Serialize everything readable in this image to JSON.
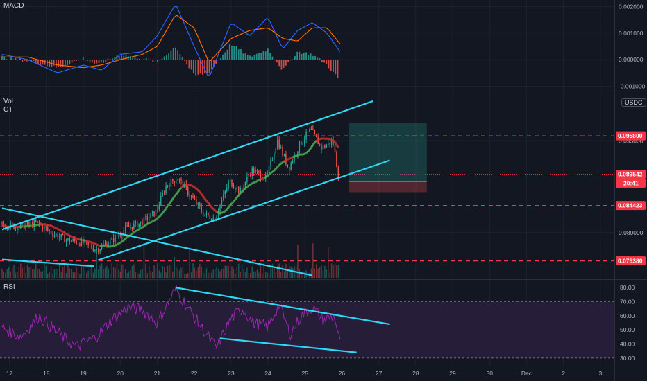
{
  "panes": {
    "macd": {
      "label": "MACD"
    },
    "price": {
      "vol_label": "Vol",
      "ct_label": "CT",
      "currency_badge": "USDC"
    },
    "rsi": {
      "label": "RSI"
    }
  },
  "macd_axis": [
    "0.002000",
    "0.001000",
    "0.000000",
    "-0.001000"
  ],
  "price_axis": [
    "0.095000",
    "0.080000"
  ],
  "rsi_axis": [
    "80.00",
    "70.00",
    "60.00",
    "50.00",
    "40.00",
    "30.00"
  ],
  "price_tags": [
    {
      "text": "0.095800",
      "color": "#f23645"
    },
    {
      "text": "0.089542",
      "color": "#f23645"
    },
    {
      "text": "20:41",
      "color": "#f23645"
    },
    {
      "text": "0.084423",
      "color": "#f23645"
    },
    {
      "text": "0.075380",
      "color": "#f23645"
    }
  ],
  "time_axis": [
    "17",
    "18",
    "19",
    "20",
    "21",
    "22",
    "23",
    "24",
    "25",
    "26",
    "27",
    "28",
    "29",
    "30",
    "Dec",
    "2",
    "3"
  ],
  "colors": {
    "background": "#131722",
    "up": "#26a69a",
    "down": "#ef5350",
    "trendline": "#2ed8f2",
    "level": "#f23645",
    "rsi_line": "#9c27b0",
    "rsi_band": "#2a1f3d",
    "macd_line": "#2962ff",
    "signal_line": "#ff6d00"
  },
  "chart_data": {
    "type": "candlestick",
    "x_axis_dates": [
      "17",
      "18",
      "19",
      "20",
      "21",
      "22",
      "23",
      "24",
      "25",
      "26",
      "27",
      "28",
      "29",
      "30",
      "Dec",
      "2",
      "3"
    ],
    "price_range": [
      0.0725,
      0.1025
    ],
    "horizontal_levels": [
      0.0958,
      0.084423,
      0.07538
    ],
    "last_price": 0.089542,
    "long_position": {
      "entry": 0.0883,
      "target": 0.0979,
      "stop": 0.0866
    },
    "price_path": [
      {
        "x": 16.8,
        "y": 0.0815
      },
      {
        "x": 17.3,
        "y": 0.0809
      },
      {
        "x": 17.8,
        "y": 0.0816
      },
      {
        "x": 18.2,
        "y": 0.0799
      },
      {
        "x": 18.6,
        "y": 0.0788
      },
      {
        "x": 19.0,
        "y": 0.0784
      },
      {
        "x": 19.4,
        "y": 0.0772
      },
      {
        "x": 19.8,
        "y": 0.0786
      },
      {
        "x": 20.2,
        "y": 0.0807
      },
      {
        "x": 20.6,
        "y": 0.0816
      },
      {
        "x": 21.0,
        "y": 0.0833
      },
      {
        "x": 21.3,
        "y": 0.0878
      },
      {
        "x": 21.6,
        "y": 0.0889
      },
      {
        "x": 22.0,
        "y": 0.0856
      },
      {
        "x": 22.3,
        "y": 0.0831
      },
      {
        "x": 22.6,
        "y": 0.0822
      },
      {
        "x": 23.0,
        "y": 0.0884
      },
      {
        "x": 23.3,
        "y": 0.0867
      },
      {
        "x": 23.6,
        "y": 0.0902
      },
      {
        "x": 24.0,
        "y": 0.0888
      },
      {
        "x": 24.3,
        "y": 0.0951
      },
      {
        "x": 24.6,
        "y": 0.0905
      },
      {
        "x": 24.9,
        "y": 0.0944
      },
      {
        "x": 25.2,
        "y": 0.0968
      },
      {
        "x": 25.5,
        "y": 0.0938
      },
      {
        "x": 25.8,
        "y": 0.095
      },
      {
        "x": 25.95,
        "y": 0.0895
      }
    ],
    "rsi_range": [
      25,
      85
    ],
    "rsi_levels": [
      70,
      30
    ],
    "rsi_path": [
      {
        "x": 16.8,
        "y": 52
      },
      {
        "x": 17.3,
        "y": 45
      },
      {
        "x": 17.8,
        "y": 60
      },
      {
        "x": 18.3,
        "y": 48
      },
      {
        "x": 18.8,
        "y": 38
      },
      {
        "x": 19.3,
        "y": 44
      },
      {
        "x": 19.8,
        "y": 58
      },
      {
        "x": 20.2,
        "y": 66
      },
      {
        "x": 20.6,
        "y": 64
      },
      {
        "x": 21.0,
        "y": 55
      },
      {
        "x": 21.5,
        "y": 79
      },
      {
        "x": 21.9,
        "y": 63
      },
      {
        "x": 22.3,
        "y": 48
      },
      {
        "x": 22.6,
        "y": 37
      },
      {
        "x": 23.0,
        "y": 58
      },
      {
        "x": 23.3,
        "y": 65
      },
      {
        "x": 23.6,
        "y": 55
      },
      {
        "x": 24.0,
        "y": 52
      },
      {
        "x": 24.3,
        "y": 68
      },
      {
        "x": 24.6,
        "y": 47
      },
      {
        "x": 24.9,
        "y": 60
      },
      {
        "x": 25.2,
        "y": 66
      },
      {
        "x": 25.5,
        "y": 57
      },
      {
        "x": 25.8,
        "y": 60
      },
      {
        "x": 25.95,
        "y": 40
      }
    ],
    "macd_range": [
      -0.00125,
      0.00225
    ],
    "macd_histogram": [
      {
        "x": 16.8,
        "y": 0.0001
      },
      {
        "x": 17.5,
        "y": -5e-05
      },
      {
        "x": 18.3,
        "y": -0.0003
      },
      {
        "x": 19.0,
        "y": 5e-05
      },
      {
        "x": 19.4,
        "y": -0.0002
      },
      {
        "x": 20.0,
        "y": 0.0002
      },
      {
        "x": 20.6,
        "y": 5e-05
      },
      {
        "x": 21.0,
        "y": -0.0001
      },
      {
        "x": 21.5,
        "y": 0.0005
      },
      {
        "x": 22.0,
        "y": -0.0006
      },
      {
        "x": 22.4,
        "y": -0.0005
      },
      {
        "x": 23.0,
        "y": 0.0006
      },
      {
        "x": 23.5,
        "y": 0.0001
      },
      {
        "x": 24.0,
        "y": 0.0004
      },
      {
        "x": 24.4,
        "y": -0.0004
      },
      {
        "x": 24.8,
        "y": 0.0003
      },
      {
        "x": 25.2,
        "y": 0.0002
      },
      {
        "x": 25.6,
        "y": -0.0002
      },
      {
        "x": 25.95,
        "y": -0.0008
      }
    ],
    "macd_line_path": [
      {
        "x": 16.8,
        "y": 0.0002
      },
      {
        "x": 17.5,
        "y": 0.0
      },
      {
        "x": 18.3,
        "y": -0.0005
      },
      {
        "x": 19.0,
        "y": -0.0002
      },
      {
        "x": 19.5,
        "y": -0.0004
      },
      {
        "x": 20.0,
        "y": 0.0002
      },
      {
        "x": 20.6,
        "y": 0.0003
      },
      {
        "x": 21.0,
        "y": 0.0009
      },
      {
        "x": 21.5,
        "y": 0.0021
      },
      {
        "x": 22.0,
        "y": 0.0005
      },
      {
        "x": 22.4,
        "y": -0.0007
      },
      {
        "x": 23.0,
        "y": 0.0014
      },
      {
        "x": 23.5,
        "y": 0.0009
      },
      {
        "x": 24.0,
        "y": 0.0016
      },
      {
        "x": 24.4,
        "y": 0.0004
      },
      {
        "x": 24.8,
        "y": 0.0011
      },
      {
        "x": 25.2,
        "y": 0.0014
      },
      {
        "x": 25.6,
        "y": 0.001
      },
      {
        "x": 25.95,
        "y": 0.0003
      }
    ],
    "signal_line_path": [
      {
        "x": 16.8,
        "y": 0.0001
      },
      {
        "x": 17.5,
        "y": 0.0001
      },
      {
        "x": 18.3,
        "y": -0.0002
      },
      {
        "x": 19.0,
        "y": -0.0003
      },
      {
        "x": 19.5,
        "y": -0.0002
      },
      {
        "x": 20.0,
        "y": 0.0
      },
      {
        "x": 20.6,
        "y": 0.0002
      },
      {
        "x": 21.0,
        "y": 0.0005
      },
      {
        "x": 21.5,
        "y": 0.0017
      },
      {
        "x": 22.0,
        "y": 0.0012
      },
      {
        "x": 22.4,
        "y": -0.0001
      },
      {
        "x": 23.0,
        "y": 0.0008
      },
      {
        "x": 23.5,
        "y": 0.0011
      },
      {
        "x": 24.0,
        "y": 0.0012
      },
      {
        "x": 24.4,
        "y": 0.0008
      },
      {
        "x": 24.8,
        "y": 0.0007
      },
      {
        "x": 25.2,
        "y": 0.0012
      },
      {
        "x": 25.6,
        "y": 0.0012
      },
      {
        "x": 25.95,
        "y": 0.0006
      }
    ],
    "trendlines": {
      "channel_upper": [
        {
          "x": 16.8,
          "y": 0.0805
        },
        {
          "x": 26.85,
          "y": 0.1015
        }
      ],
      "channel_lower": [
        {
          "x": 19.4,
          "y": 0.0755
        },
        {
          "x": 27.3,
          "y": 0.0918
        }
      ],
      "descending_upper": [
        {
          "x": 16.8,
          "y": 0.084
        },
        {
          "x": 25.2,
          "y": 0.073
        }
      ],
      "descending_lower": [
        {
          "x": 16.8,
          "y": 0.0756
        },
        {
          "x": 19.3,
          "y": 0.0745
        }
      ],
      "rsi_upper": [
        {
          "x": 21.5,
          "y": 80
        },
        {
          "x": 27.3,
          "y": 54
        }
      ],
      "rsi_lower": [
        {
          "x": 22.7,
          "y": 44
        },
        {
          "x": 26.4,
          "y": 34
        }
      ]
    }
  }
}
